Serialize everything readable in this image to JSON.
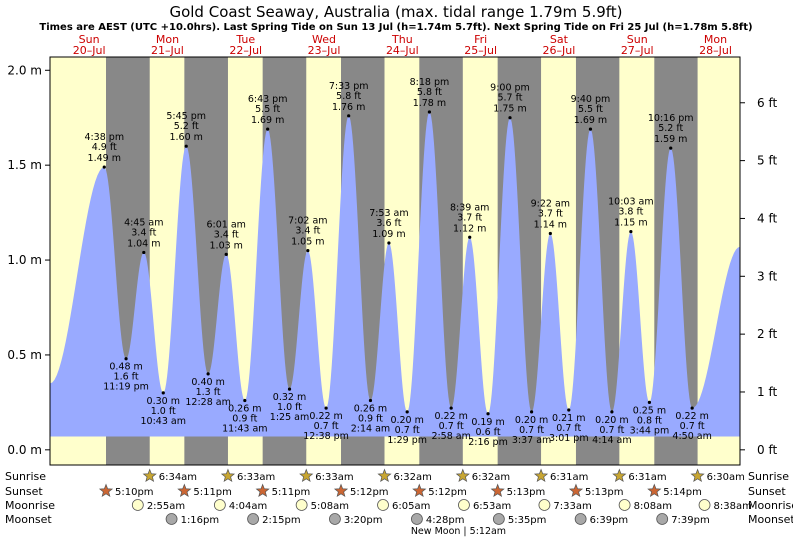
{
  "title": "Gold Coast Seaway, Australia (max. tidal range 1.79m 5.9ft)",
  "subtitle": "Times are AEST (UTC +10.0hrs). Last Spring Tide on Sun 13 Jul (h=1.74m 5.7ft). Next Spring Tide on Fri 25 Jul (h=1.78m 5.8ft)",
  "colors": {
    "day": "#ffffcc",
    "night": "#888888",
    "tide": "#99aaff",
    "day_label": "#cc0000",
    "sun_icon": "#c8a632",
    "sunset_icon": "#cc6633",
    "moonrise_icon": "#ffffcc",
    "moonset_icon": "#a8a8a8"
  },
  "icons": {
    "sunrise": "star-icon",
    "sunset": "star-icon",
    "moonrise": "circle-icon",
    "moonset": "circle-icon"
  },
  "chart_data": {
    "type": "area",
    "x_unit": "hours since 00:00 Sun 20 Jul (AEST)",
    "y_unit_left": "m",
    "y_unit_right": "ft",
    "xlim": [
      0,
      211.5
    ],
    "ylim": [
      -0.08,
      2.07
    ],
    "left_ticks": [
      {
        "value": 0.0,
        "label": "0.0 m"
      },
      {
        "value": 0.5,
        "label": "0.5 m"
      },
      {
        "value": 1.0,
        "label": "1.0 m"
      },
      {
        "value": 1.5,
        "label": "1.5 m"
      },
      {
        "value": 2.0,
        "label": "2.0 m"
      }
    ],
    "right_ticks": [
      {
        "value": 0,
        "label": "0 ft"
      },
      {
        "value": 1,
        "label": "1 ft"
      },
      {
        "value": 2,
        "label": "2 ft"
      },
      {
        "value": 3,
        "label": "3 ft"
      },
      {
        "value": 4,
        "label": "4 ft"
      },
      {
        "value": 5,
        "label": "5 ft"
      },
      {
        "value": 6,
        "label": "6 ft"
      }
    ],
    "days": [
      {
        "dow": "Sun",
        "date": "20–Jul",
        "x": 12
      },
      {
        "dow": "Mon",
        "date": "21–Jul",
        "x": 36
      },
      {
        "dow": "Tue",
        "date": "22–Jul",
        "x": 60
      },
      {
        "dow": "Wed",
        "date": "23–Jul",
        "x": 84
      },
      {
        "dow": "Thu",
        "date": "24–Jul",
        "x": 108
      },
      {
        "dow": "Fri",
        "date": "25–Jul",
        "x": 132
      },
      {
        "dow": "Sat",
        "date": "26–Jul",
        "x": 156
      },
      {
        "dow": "Sun",
        "date": "27–Jul",
        "x": 180
      },
      {
        "dow": "Mon",
        "date": "28–Jul",
        "x": 204
      }
    ],
    "tide_start": {
      "x": 0,
      "y": 0.35
    },
    "tide_end": {
      "x": 211.5,
      "y": 1.07
    },
    "tide_events": [
      {
        "type": "high",
        "x": 16.633,
        "time": "4:38 pm",
        "ft": "4.9 ft",
        "m": "1.49 m",
        "y": 1.49
      },
      {
        "type": "low",
        "x": 23.317,
        "time": "11:19 pm",
        "ft": "1.6 ft",
        "m": "0.48 m",
        "y": 0.48
      },
      {
        "type": "high",
        "x": 28.75,
        "time": "4:45 am",
        "ft": "3.4 ft",
        "m": "1.04 m",
        "y": 1.04
      },
      {
        "type": "low",
        "x": 34.717,
        "time": "10:43 am",
        "ft": "1.0 ft",
        "m": "0.30 m",
        "y": 0.3
      },
      {
        "type": "high",
        "x": 41.75,
        "time": "5:45 pm",
        "ft": "5.2 ft",
        "m": "1.60 m",
        "y": 1.6
      },
      {
        "type": "low",
        "x": 48.467,
        "time": "12:28 am",
        "ft": "1.3 ft",
        "m": "0.40 m",
        "y": 0.4
      },
      {
        "type": "high",
        "x": 54.017,
        "time": "6:01 am",
        "ft": "3.4 ft",
        "m": "1.03 m",
        "y": 1.03
      },
      {
        "type": "low",
        "x": 59.717,
        "time": "11:43 am",
        "ft": "0.9 ft",
        "m": "0.26 m",
        "y": 0.26
      },
      {
        "type": "high",
        "x": 66.717,
        "time": "6:43 pm",
        "ft": "5.5 ft",
        "m": "1.69 m",
        "y": 1.69
      },
      {
        "type": "low",
        "x": 73.417,
        "time": "1:25 am",
        "ft": "1.0 ft",
        "m": "0.32 m",
        "y": 0.32
      },
      {
        "type": "high",
        "x": 79.033,
        "time": "7:02 am",
        "ft": "3.4 ft",
        "m": "1.05 m",
        "y": 1.05
      },
      {
        "type": "low",
        "x": 84.633,
        "time": "12:38 pm",
        "ft": "0.7 ft",
        "m": "0.22 m",
        "y": 0.22
      },
      {
        "type": "high",
        "x": 91.55,
        "time": "7:33 pm",
        "ft": "5.8 ft",
        "m": "1.76 m",
        "y": 1.76
      },
      {
        "type": "low",
        "x": 98.233,
        "time": "2:14 am",
        "ft": "0.9 ft",
        "m": "0.26 m",
        "y": 0.26
      },
      {
        "type": "high",
        "x": 103.883,
        "time": "7:53 am",
        "ft": "3.6 ft",
        "m": "1.09 m",
        "y": 1.09
      },
      {
        "type": "low",
        "x": 109.483,
        "time": "1:29 pm",
        "ft": "0.7 ft",
        "m": "0.20 m",
        "y": 0.2
      },
      {
        "type": "high",
        "x": 116.3,
        "time": "8:18 pm",
        "ft": "5.8 ft",
        "m": "1.78 m",
        "y": 1.78
      },
      {
        "type": "low",
        "x": 122.967,
        "time": "2:58 am",
        "ft": "0.7 ft",
        "m": "0.22 m",
        "y": 0.22
      },
      {
        "type": "high",
        "x": 128.65,
        "time": "8:39 am",
        "ft": "3.7 ft",
        "m": "1.12 m",
        "y": 1.12
      },
      {
        "type": "low",
        "x": 134.267,
        "time": "2:16 pm",
        "ft": "0.6 ft",
        "m": "0.19 m",
        "y": 0.19
      },
      {
        "type": "high",
        "x": 141.0,
        "time": "9:00 pm",
        "ft": "5.7 ft",
        "m": "1.75 m",
        "y": 1.75
      },
      {
        "type": "low",
        "x": 147.617,
        "time": "3:37 am",
        "ft": "0.7 ft",
        "m": "0.20 m",
        "y": 0.2
      },
      {
        "type": "high",
        "x": 153.367,
        "time": "9:22 am",
        "ft": "3.7 ft",
        "m": "1.14 m",
        "y": 1.14
      },
      {
        "type": "low",
        "x": 159.017,
        "time": "3:01 pm",
        "ft": "0.7 ft",
        "m": "0.21 m",
        "y": 0.21
      },
      {
        "type": "high",
        "x": 165.667,
        "time": "9:40 pm",
        "ft": "5.5 ft",
        "m": "1.69 m",
        "y": 1.69
      },
      {
        "type": "low",
        "x": 172.233,
        "time": "4:14 am",
        "ft": "0.7 ft",
        "m": "0.20 m",
        "y": 0.2
      },
      {
        "type": "high",
        "x": 178.05,
        "time": "10:03 am",
        "ft": "3.8 ft",
        "m": "1.15 m",
        "y": 1.15
      },
      {
        "type": "low",
        "x": 183.733,
        "time": "3:44 pm",
        "ft": "0.8 ft",
        "m": "0.25 m",
        "y": 0.25
      },
      {
        "type": "high",
        "x": 190.267,
        "time": "10:16 pm",
        "ft": "5.2 ft",
        "m": "1.59 m",
        "y": 1.59
      },
      {
        "type": "low",
        "x": 196.833,
        "time": "4:50 am",
        "ft": "0.7 ft",
        "m": "0.22 m",
        "y": 0.22
      }
    ],
    "sunrise": [
      {
        "x": 30.567,
        "label": "6:34am"
      },
      {
        "x": 54.55,
        "label": "6:33am"
      },
      {
        "x": 78.55,
        "label": "6:33am"
      },
      {
        "x": 102.533,
        "label": "6:32am"
      },
      {
        "x": 126.533,
        "label": "6:32am"
      },
      {
        "x": 150.517,
        "label": "6:31am"
      },
      {
        "x": 174.517,
        "label": "6:31am"
      },
      {
        "x": 198.5,
        "label": "6:30am"
      }
    ],
    "sunset": [
      {
        "x": 17.167,
        "label": "5:10pm"
      },
      {
        "x": 41.183,
        "label": "5:11pm"
      },
      {
        "x": 65.183,
        "label": "5:11pm"
      },
      {
        "x": 89.2,
        "label": "5:12pm"
      },
      {
        "x": 113.2,
        "label": "5:12pm"
      },
      {
        "x": 137.217,
        "label": "5:13pm"
      },
      {
        "x": 161.217,
        "label": "5:13pm"
      },
      {
        "x": 185.233,
        "label": "5:14pm"
      }
    ],
    "moonrise": [
      {
        "x": 26.917,
        "label": "2:55am"
      },
      {
        "x": 52.067,
        "label": "4:04am"
      },
      {
        "x": 77.133,
        "label": "5:08am"
      },
      {
        "x": 102.083,
        "label": "6:05am"
      },
      {
        "x": 126.883,
        "label": "6:53am"
      },
      {
        "x": 151.55,
        "label": "7:33am"
      },
      {
        "x": 176.133,
        "label": "8:08am"
      },
      {
        "x": 200.633,
        "label": "8:38am"
      }
    ],
    "moonset": [
      {
        "x": 37.267,
        "label": "1:16pm"
      },
      {
        "x": 62.25,
        "label": "2:15pm"
      },
      {
        "x": 87.333,
        "label": "3:20pm"
      },
      {
        "x": 112.467,
        "label": "4:28pm"
      },
      {
        "x": 137.583,
        "label": "5:35pm"
      },
      {
        "x": 162.65,
        "label": "6:39pm"
      },
      {
        "x": 187.65,
        "label": "7:39pm"
      }
    ],
    "new_moon": {
      "x": 125.2,
      "label": "New Moon | 5:12am"
    },
    "row_labels": {
      "sunrise": "Sunrise",
      "sunset": "Sunset",
      "moonrise": "Moonrise",
      "moonset": "Moonset"
    }
  }
}
